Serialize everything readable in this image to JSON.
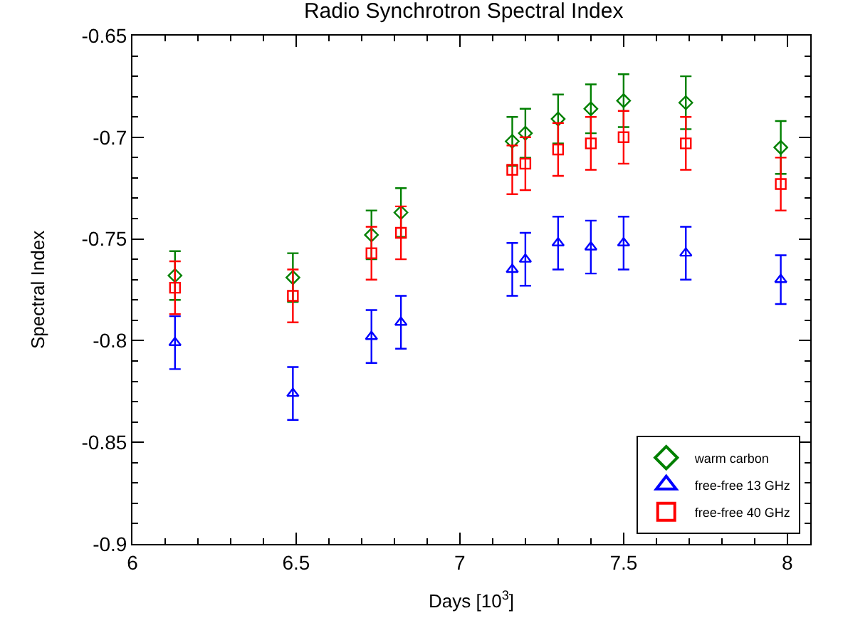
{
  "chart_data": {
    "type": "scatter",
    "title": "Radio Synchrotron Spectral Index",
    "xlabel": "Days [10$^{3}$]",
    "ylabel": "Spectral Index",
    "xlim": [
      6,
      8.07
    ],
    "xticks": [
      6,
      6.5,
      7,
      7.5,
      8
    ],
    "ylim": [
      -0.9,
      -0.65
    ],
    "yticks": [
      -0.9,
      -0.85,
      -0.8,
      -0.75,
      -0.7,
      -0.65
    ],
    "x": [
      6.13,
      6.49,
      6.73,
      6.82,
      7.16,
      7.2,
      7.3,
      7.4,
      7.5,
      7.69,
      7.98
    ],
    "legend": "bottom right",
    "series": [
      {
        "name": "warm carbon",
        "color": "#008000",
        "marker": "diamond",
        "values": [
          -0.768,
          -0.769,
          -0.748,
          -0.737,
          -0.702,
          -0.698,
          -0.691,
          -0.686,
          -0.682,
          -0.683,
          -0.705
        ],
        "errors": [
          0.012,
          0.012,
          0.012,
          0.012,
          0.012,
          0.012,
          0.012,
          0.012,
          0.013,
          0.013,
          0.013
        ]
      },
      {
        "name": "free-free 13 GHz",
        "color": "#0000ff",
        "marker": "triangle",
        "values": [
          -0.801,
          -0.826,
          -0.798,
          -0.791,
          -0.765,
          -0.76,
          -0.752,
          -0.754,
          -0.752,
          -0.757,
          -0.77
        ],
        "errors": [
          0.013,
          0.013,
          0.013,
          0.013,
          0.013,
          0.013,
          0.013,
          0.013,
          0.013,
          0.013,
          0.012
        ]
      },
      {
        "name": "free-free 40 GHz",
        "color": "#ff0000",
        "marker": "square",
        "values": [
          -0.774,
          -0.778,
          -0.757,
          -0.747,
          -0.716,
          -0.713,
          -0.706,
          -0.703,
          -0.7,
          -0.703,
          -0.723
        ],
        "errors": [
          0.013,
          0.013,
          0.013,
          0.013,
          0.012,
          0.013,
          0.013,
          0.013,
          0.013,
          0.013,
          0.013
        ]
      }
    ]
  }
}
